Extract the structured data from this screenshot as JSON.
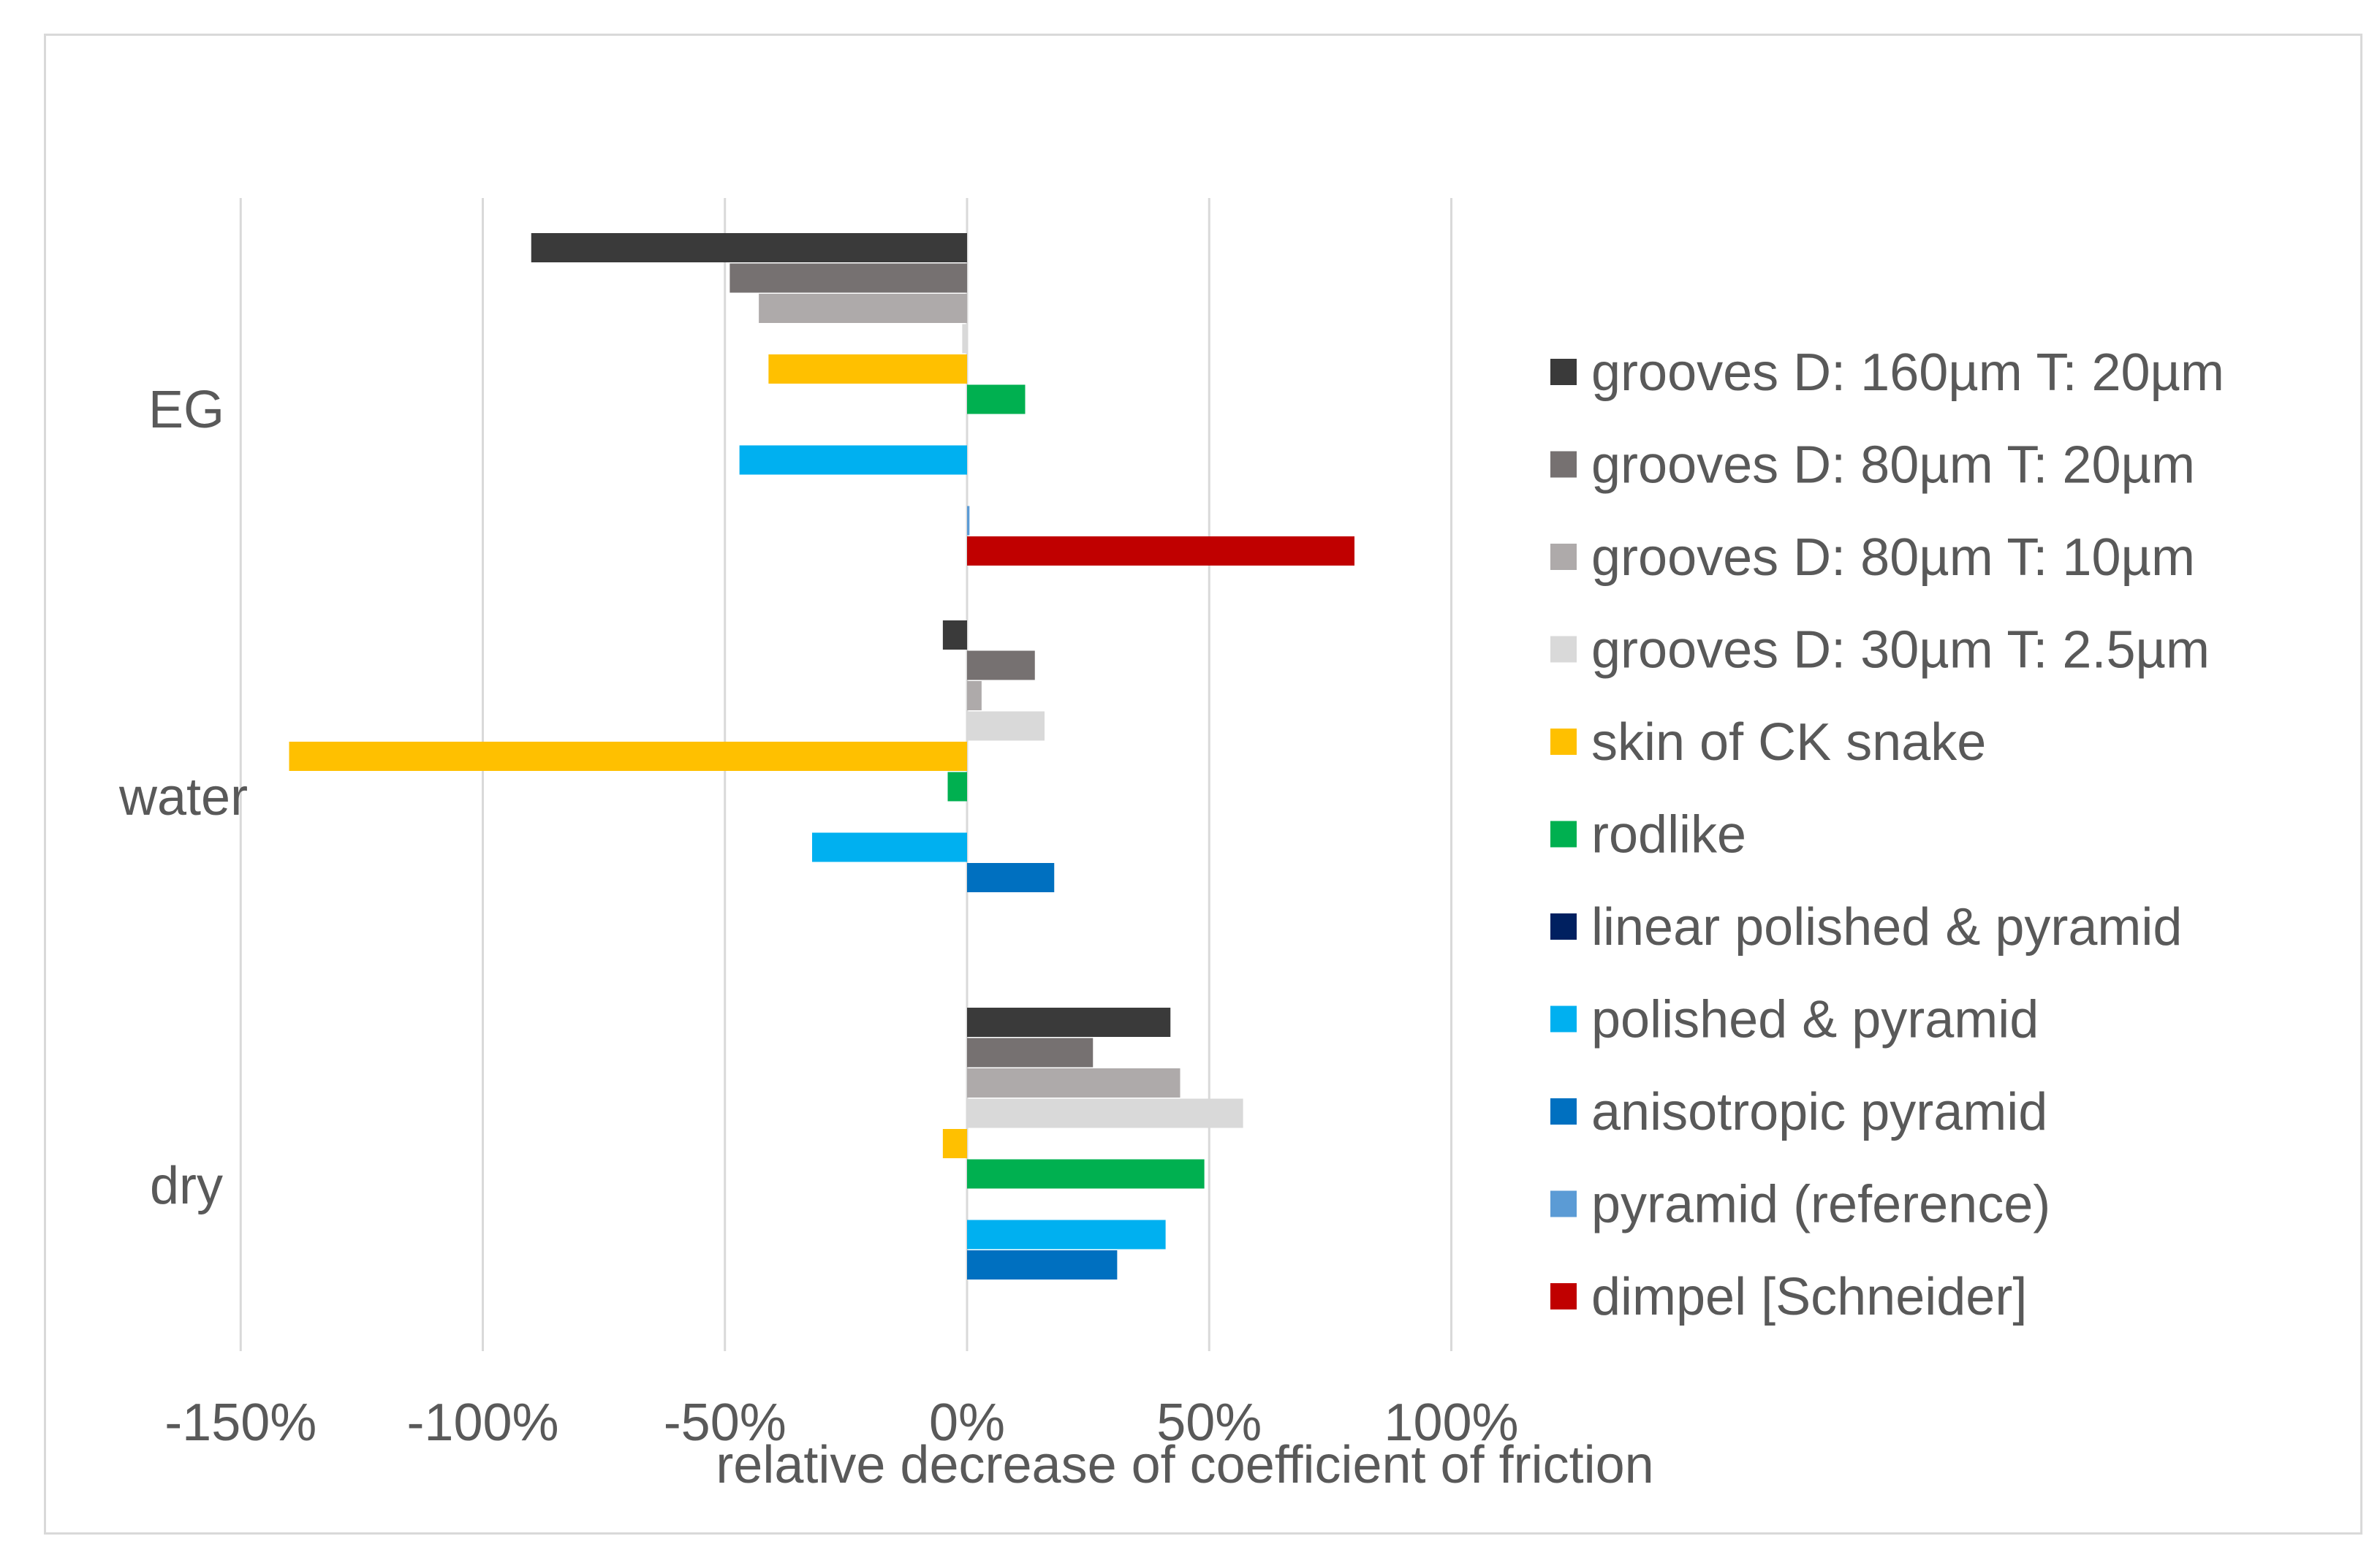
{
  "chart_data": {
    "type": "bar",
    "orientation": "horizontal",
    "title": "",
    "xlabel": "relative decrease of coefficient of friction",
    "ylabel": "",
    "xlim": [
      -150,
      120
    ],
    "xticks": [
      -150,
      -100,
      -50,
      0,
      50,
      100
    ],
    "xtick_labels": [
      "-150%",
      "-100%",
      "-50%",
      "0%",
      "50%",
      "100%"
    ],
    "grid": "vertical",
    "legend_position": "right",
    "categories": [
      "EG",
      "water",
      "dry"
    ],
    "series": [
      {
        "name": "grooves D: 160µm T: 20µm",
        "color": "#3a3a3a",
        "values": [
          -90,
          -5,
          42
        ]
      },
      {
        "name": "grooves D: 80µm T: 20µm",
        "color": "#767171",
        "values": [
          -49,
          14,
          26
        ]
      },
      {
        "name": "grooves D: 80µm T: 10µm",
        "color": "#aeaaaa",
        "values": [
          -43,
          3,
          44
        ]
      },
      {
        "name": "grooves D: 30µm T: 2.5µm",
        "color": "#d9d9d9",
        "values": [
          -1,
          16,
          57
        ]
      },
      {
        "name": "skin of CK snake",
        "color": "#ffc000",
        "values": [
          -41,
          -140,
          -5
        ]
      },
      {
        "name": "rodlike",
        "color": "#00b050",
        "values": [
          12,
          -4,
          49
        ]
      },
      {
        "name": "linear polished & pyramid",
        "color": "#002060",
        "values": [
          0,
          0,
          0
        ]
      },
      {
        "name": "polished & pyramid",
        "color": "#00b0f0",
        "values": [
          -47,
          -32,
          41
        ]
      },
      {
        "name": "anisotropic pyramid",
        "color": "#0070c0",
        "values": [
          0,
          18,
          31
        ]
      },
      {
        "name": "pyramid (reference)",
        "color": "#5b9bd5",
        "values": [
          0.5,
          0,
          0
        ]
      },
      {
        "name": "dimpel [Schneider]",
        "color": "#c00000",
        "values": [
          80,
          0,
          0
        ]
      }
    ]
  }
}
